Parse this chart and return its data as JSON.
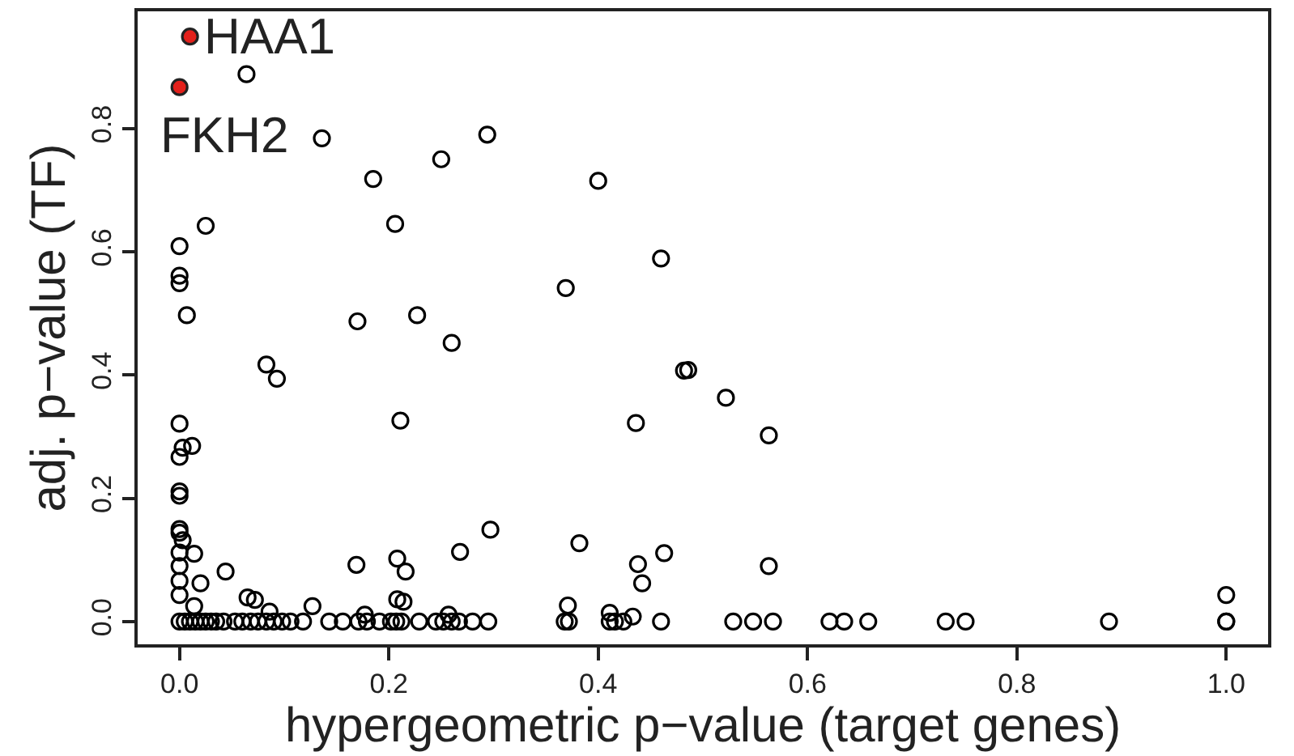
{
  "chart_data": {
    "type": "scatter",
    "xlabel": "hypergeometric p−value (target genes)",
    "ylabel": "adj. p−value (TF)",
    "xlim": [
      -0.04,
      1.04
    ],
    "ylim": [
      -0.037,
      0.99
    ],
    "xticks": [
      {
        "value": 0,
        "label": "0.0"
      },
      0.2,
      0.4,
      0.6,
      0.8,
      {
        "value": 1,
        "label": "1.0"
      }
    ],
    "yticks": [
      {
        "value": 0,
        "label": "0.0"
      },
      0.2,
      0.4,
      0.6,
      0.8
    ],
    "marker": "circle",
    "series": [
      {
        "color": "#000000",
        "x": [
          0.064,
          0.136,
          0.294,
          0.25,
          0.185,
          0.4,
          0.025,
          0.206,
          0.0,
          0.0,
          0.0,
          0.46,
          0.369,
          0.007,
          0.17,
          0.227,
          0.26,
          0.482,
          0.083,
          0.093,
          0.211,
          0.436,
          0.0,
          0.012,
          0.003,
          0.0,
          0.0,
          0.0,
          0.0,
          0.0,
          0.003,
          0.0,
          0.014,
          0.0,
          0.044,
          0.02,
          0.0,
          0.0,
          0.014,
          0.065,
          0.072,
          0.127,
          0.086,
          0.297,
          0.268,
          0.169,
          0.208,
          0.216,
          0.208,
          0.214,
          0.382,
          0.371,
          0.438,
          0.442,
          0.463,
          0.411,
          0.433,
          0.177,
          0.257,
          0.486,
          0.522,
          0.563,
          0.563,
          1.0,
          0.0,
          0.005,
          0.01,
          0.015,
          0.02,
          0.025,
          0.03,
          0.035,
          0.042,
          0.053,
          0.06,
          0.068,
          0.075,
          0.083,
          0.09,
          0.098,
          0.106,
          0.118,
          0.143,
          0.156,
          0.171,
          0.179,
          0.191,
          0.202,
          0.207,
          0.212,
          0.229,
          0.245,
          0.252,
          0.26,
          0.267,
          0.28,
          0.295,
          0.368,
          0.372,
          0.411,
          0.416,
          0.424,
          0.46,
          0.529,
          0.548,
          0.567,
          0.621,
          0.635,
          0.658,
          0.732,
          0.751,
          0.888,
          1.0,
          1.0
        ],
        "values": [
          0.888,
          0.784,
          0.79,
          0.75,
          0.718,
          0.715,
          0.642,
          0.645,
          0.609,
          0.561,
          0.549,
          0.589,
          0.541,
          0.497,
          0.487,
          0.497,
          0.452,
          0.407,
          0.417,
          0.394,
          0.326,
          0.322,
          0.321,
          0.285,
          0.282,
          0.267,
          0.211,
          0.204,
          0.15,
          0.144,
          0.132,
          0.112,
          0.11,
          0.09,
          0.081,
          0.062,
          0.066,
          0.043,
          0.025,
          0.039,
          0.035,
          0.025,
          0.016,
          0.149,
          0.113,
          0.092,
          0.102,
          0.081,
          0.036,
          0.032,
          0.127,
          0.026,
          0.093,
          0.062,
          0.111,
          0.014,
          0.008,
          0.011,
          0.011,
          0.408,
          0.363,
          0.302,
          0.09,
          0.043,
          0,
          0,
          0,
          0,
          0,
          0,
          0,
          0,
          0,
          0,
          0,
          0,
          0,
          0,
          0,
          0,
          0,
          0,
          0,
          0,
          0,
          0,
          0,
          0,
          0,
          0,
          0,
          0,
          0,
          0,
          0,
          0,
          0,
          0,
          0,
          0,
          0,
          0,
          0,
          0,
          0,
          0,
          0,
          0,
          0,
          0,
          0,
          0,
          0,
          0
        ]
      },
      {
        "color": "#e3201b",
        "x": [
          0.01,
          0.0
        ],
        "values": [
          0.949,
          0.867
        ]
      }
    ],
    "annotations": [
      {
        "text": "HAA1",
        "x": 0.01,
        "y": 0.949
      },
      {
        "text": "FKH2",
        "x": 0.0,
        "y": 0.867
      }
    ]
  }
}
